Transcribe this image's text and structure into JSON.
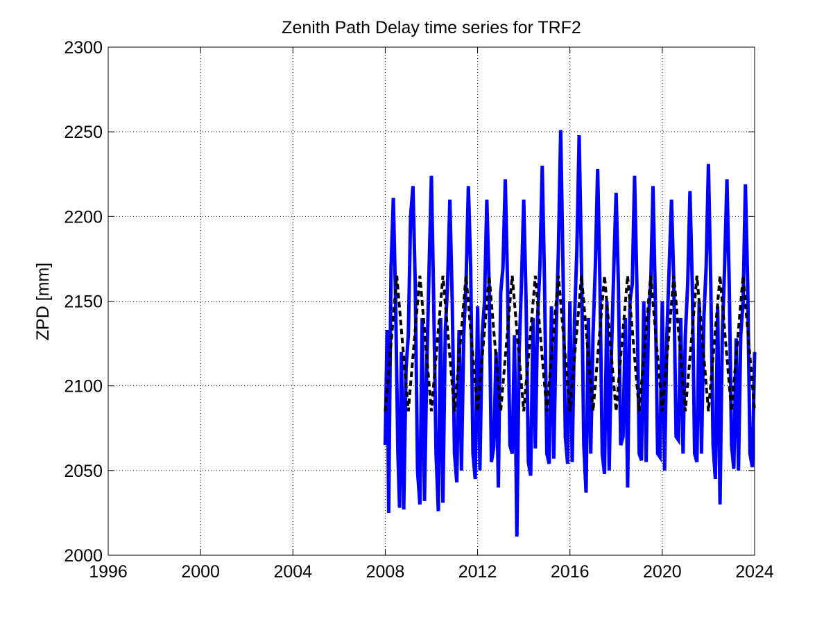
{
  "chart_data": {
    "type": "line",
    "title": "Zenith Path Delay time series for TRF2",
    "xlabel": "",
    "ylabel": "ZPD [mm]",
    "xlim": [
      1996,
      2024
    ],
    "ylim": [
      2000,
      2300
    ],
    "xticks": [
      1996,
      2000,
      2004,
      2008,
      2012,
      2016,
      2020,
      2024
    ],
    "yticks": [
      2000,
      2050,
      2100,
      2150,
      2200,
      2250,
      2300
    ],
    "grid": true,
    "legend": "none",
    "colors": {
      "raw": "#0000ff",
      "model": "#000000",
      "axes": "#000000",
      "grid": "#000000"
    },
    "series": [
      {
        "style": "solid-blue-thick",
        "x": [
          2008.0,
          2008.08,
          2008.15,
          2008.25,
          2008.35,
          2008.45,
          2008.55,
          2008.62,
          2008.7,
          2008.8,
          2008.9,
          2009.0,
          2009.1,
          2009.2,
          2009.3,
          2009.4,
          2009.5,
          2009.6,
          2009.7,
          2009.8,
          2009.9,
          2010.0,
          2010.1,
          2010.2,
          2010.3,
          2010.4,
          2010.5,
          2010.6,
          2010.7,
          2010.8,
          2010.9,
          2011.0,
          2011.1,
          2011.2,
          2011.3,
          2011.4,
          2011.5,
          2011.6,
          2011.7,
          2011.8,
          2011.9,
          2012.0,
          2012.1,
          2012.2,
          2012.3,
          2012.4,
          2012.5,
          2012.6,
          2012.7,
          2012.8,
          2012.9,
          2013.0,
          2013.1,
          2013.2,
          2013.3,
          2013.4,
          2013.5,
          2013.6,
          2013.7,
          2013.8,
          2013.9,
          2014.0,
          2014.1,
          2014.2,
          2014.3,
          2014.4,
          2014.5,
          2014.6,
          2014.7,
          2014.8,
          2014.9,
          2015.0,
          2015.1,
          2015.2,
          2015.3,
          2015.4,
          2015.5,
          2015.6,
          2015.7,
          2015.8,
          2015.9,
          2016.0,
          2016.1,
          2016.2,
          2016.3,
          2016.4,
          2016.5,
          2016.6,
          2016.7,
          2016.8,
          2016.9,
          2017.0,
          2017.1,
          2017.2,
          2017.3,
          2017.4,
          2017.5,
          2017.6,
          2017.7,
          2017.8,
          2017.9,
          2018.0,
          2018.1,
          2018.2,
          2018.3,
          2018.4,
          2018.5,
          2018.6,
          2018.7,
          2018.8,
          2018.9,
          2019.0,
          2019.1,
          2019.2,
          2019.3,
          2019.4,
          2019.5,
          2019.6,
          2019.7,
          2019.8,
          2019.9,
          2020.0,
          2020.1,
          2020.2,
          2020.3,
          2020.4,
          2020.5,
          2020.6,
          2020.7,
          2020.8,
          2020.9,
          2021.0,
          2021.1,
          2021.2,
          2021.3,
          2021.4,
          2021.5,
          2021.6,
          2021.7,
          2021.8,
          2021.9,
          2022.0,
          2022.1,
          2022.2,
          2022.3,
          2022.4,
          2022.5,
          2022.6,
          2022.7,
          2022.8,
          2022.9,
          2023.0,
          2023.1,
          2023.2,
          2023.3,
          2023.4,
          2023.5,
          2023.6,
          2023.7,
          2023.8,
          2023.9,
          2024.0
        ],
        "y": [
          2065,
          2133,
          2025,
          2170,
          2211,
          2150,
          2060,
          2028,
          2120,
          2027,
          2110,
          2130,
          2200,
          2218,
          2160,
          2050,
          2030,
          2140,
          2032,
          2110,
          2170,
          2224,
          2150,
          2060,
          2026,
          2140,
          2031,
          2132,
          2160,
          2210,
          2150,
          2060,
          2043,
          2133,
          2050,
          2130,
          2160,
          2218,
          2170,
          2060,
          2045,
          2147,
          2050,
          2130,
          2150,
          2210,
          2160,
          2055,
          2064,
          2120,
          2040,
          2155,
          2170,
          2222,
          2160,
          2065,
          2060,
          2130,
          2011,
          2120,
          2160,
          2210,
          2150,
          2055,
          2047,
          2140,
          2063,
          2140,
          2170,
          2230,
          2160,
          2060,
          2054,
          2147,
          2057,
          2130,
          2180,
          2251,
          2170,
          2070,
          2054,
          2150,
          2055,
          2140,
          2180,
          2248,
          2170,
          2065,
          2037,
          2140,
          2060,
          2130,
          2170,
          2228,
          2160,
          2060,
          2048,
          2150,
          2050,
          2120,
          2170,
          2214,
          2160,
          2065,
          2070,
          2140,
          2040,
          2150,
          2160,
          2224,
          2160,
          2060,
          2056,
          2150,
          2055,
          2140,
          2160,
          2218,
          2150,
          2060,
          2058,
          2150,
          2050,
          2130,
          2170,
          2210,
          2160,
          2070,
          2068,
          2140,
          2060,
          2130,
          2160,
          2215,
          2160,
          2060,
          2055,
          2150,
          2060,
          2140,
          2170,
          2231,
          2160,
          2065,
          2045,
          2147,
          2030,
          2130,
          2170,
          2222,
          2160,
          2065,
          2051,
          2128,
          2050,
          2130,
          2150,
          2219,
          2160,
          2060,
          2052,
          2120
        ]
      },
      {
        "style": "dashed-black",
        "amplitude_note": "seasonal model",
        "x": [
          2008.0,
          2008.25,
          2008.5,
          2008.75,
          2009.0,
          2009.25,
          2009.5,
          2009.75,
          2010.0,
          2010.25,
          2010.5,
          2010.75,
          2011.0,
          2011.25,
          2011.5,
          2011.75,
          2012.0,
          2012.25,
          2012.5,
          2012.75,
          2013.0,
          2013.25,
          2013.5,
          2013.75,
          2014.0,
          2014.25,
          2014.5,
          2014.75,
          2015.0,
          2015.25,
          2015.5,
          2015.75,
          2016.0,
          2016.25,
          2016.5,
          2016.75,
          2017.0,
          2017.25,
          2017.5,
          2017.75,
          2018.0,
          2018.25,
          2018.5,
          2018.75,
          2019.0,
          2019.25,
          2019.5,
          2019.75,
          2020.0,
          2020.25,
          2020.5,
          2020.75,
          2021.0,
          2021.25,
          2021.5,
          2021.75,
          2022.0,
          2022.25,
          2022.5,
          2022.75,
          2023.0,
          2023.25,
          2023.5,
          2023.75,
          2024.0
        ],
        "y": [
          2085,
          2125,
          2165,
          2125,
          2085,
          2125,
          2165,
          2125,
          2085,
          2125,
          2165,
          2125,
          2085,
          2125,
          2165,
          2125,
          2085,
          2125,
          2165,
          2125,
          2085,
          2125,
          2165,
          2125,
          2085,
          2125,
          2165,
          2125,
          2085,
          2125,
          2165,
          2125,
          2085,
          2125,
          2165,
          2125,
          2085,
          2125,
          2165,
          2125,
          2085,
          2125,
          2165,
          2125,
          2085,
          2125,
          2165,
          2125,
          2085,
          2125,
          2165,
          2125,
          2085,
          2125,
          2165,
          2125,
          2085,
          2125,
          2165,
          2125,
          2085,
          2125,
          2165,
          2125,
          2085
        ]
      }
    ]
  }
}
